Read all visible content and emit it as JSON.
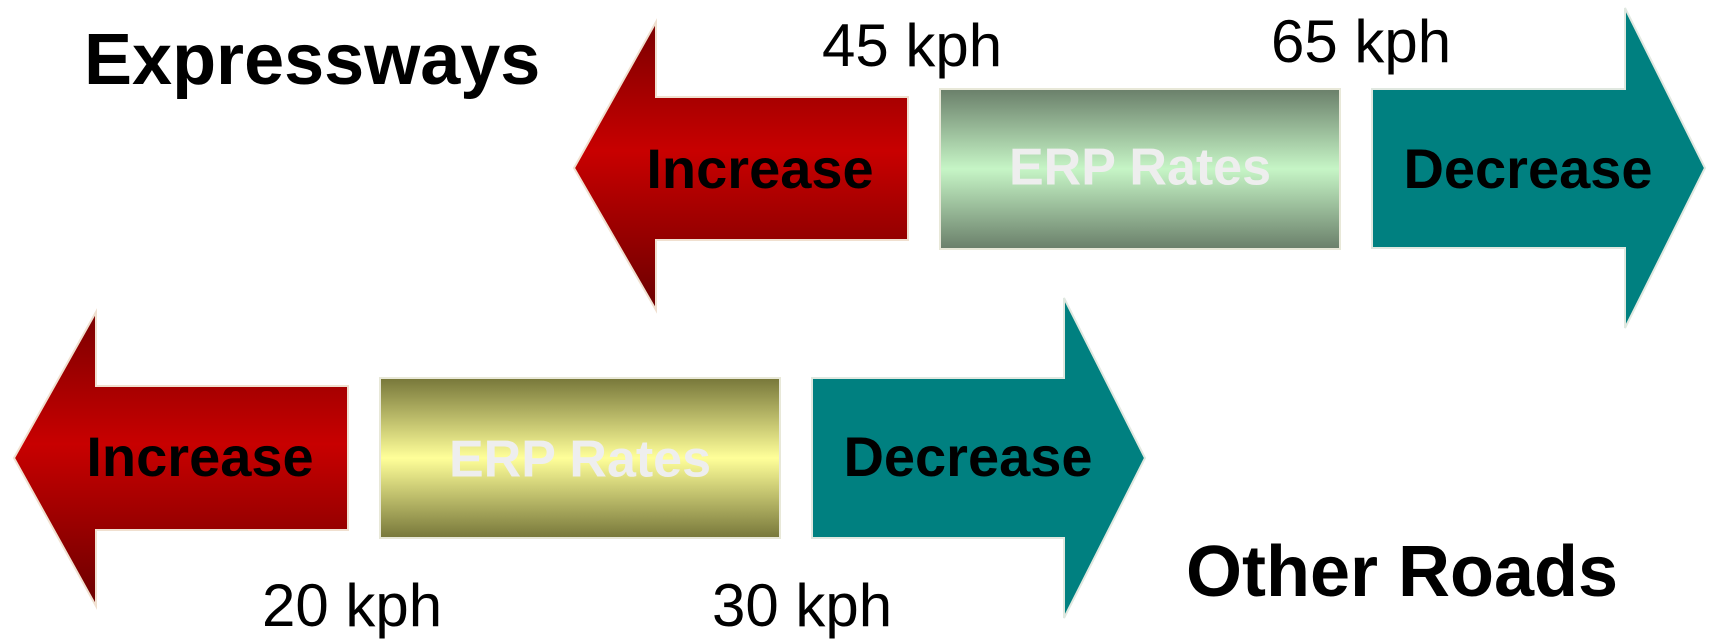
{
  "expressways": {
    "title": "Expressways",
    "increase_label": "Increase",
    "rates_label": "ERP Rates",
    "decrease_label": "Decrease",
    "low_speed": "45 kph",
    "high_speed": "65 kph"
  },
  "other_roads": {
    "title": "Other Roads",
    "increase_label": "Increase",
    "rates_label": "ERP Rates",
    "decrease_label": "Decrease",
    "low_speed": "20 kph",
    "high_speed": "30 kph"
  },
  "colors": {
    "increase_arrow": "#c00000",
    "decrease_arrow": "#008080",
    "expressway_rates_box": "#c6f5c6",
    "other_roads_rates_box": "#ffff99",
    "rates_text": "#eeeeee"
  }
}
